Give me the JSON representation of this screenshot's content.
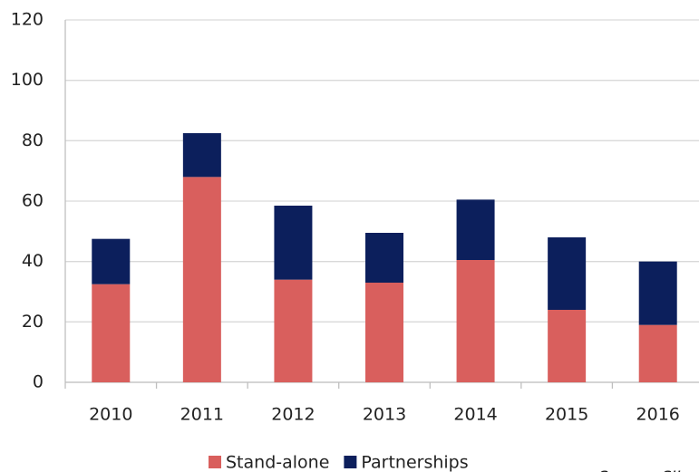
{
  "chart_data": {
    "type": "stacked_bar",
    "categories": [
      "2010",
      "2011",
      "2012",
      "2013",
      "2014",
      "2015",
      "2016"
    ],
    "series": [
      {
        "name": "Stand-alone",
        "color": "#d95f5d",
        "values": [
          32.5,
          68,
          34,
          33,
          40.5,
          24,
          19
        ]
      },
      {
        "name": "Partnerships",
        "color": "#0c1f5c",
        "values": [
          15,
          14.5,
          24.5,
          16.5,
          20,
          24,
          21
        ]
      }
    ],
    "ylim": [
      0,
      120
    ],
    "yticks": [
      0,
      20,
      40,
      60,
      80,
      100,
      120
    ],
    "grid": true,
    "source": "Source: SII"
  }
}
